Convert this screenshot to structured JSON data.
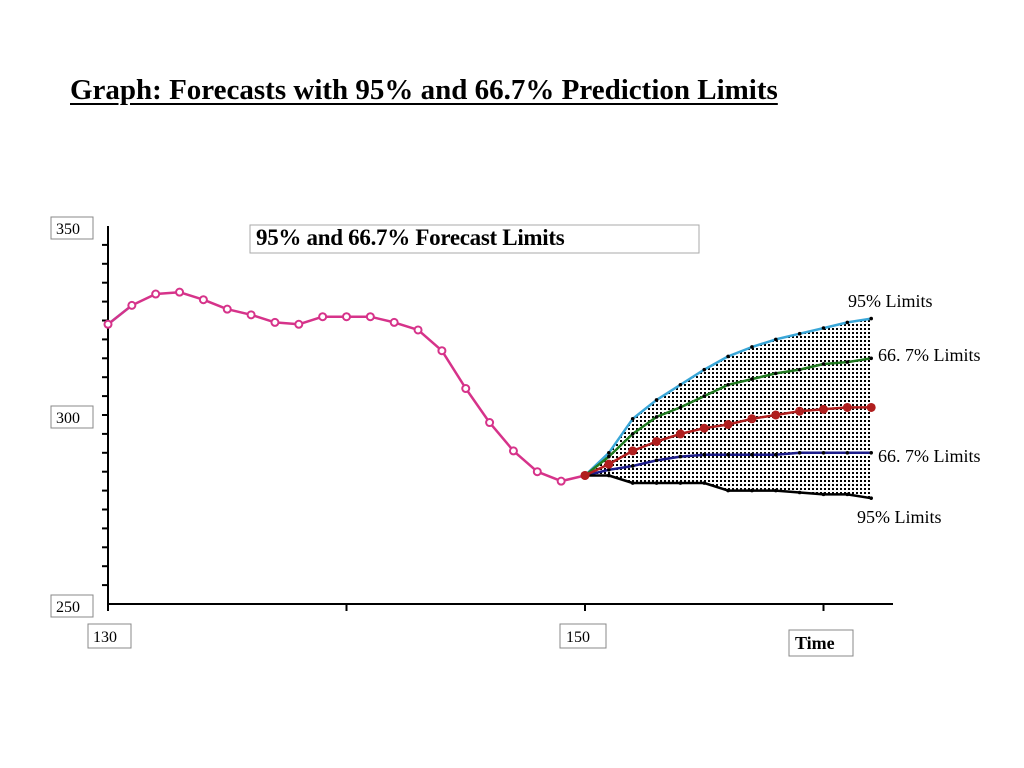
{
  "page": {
    "title": "Graph: Forecasts with 95% and 66.7% Prediction Limits"
  },
  "chart_data": {
    "type": "line",
    "title": "95% and 66.7% Forecast Limits",
    "xlabel": "Time",
    "ylabel": "",
    "xlim": [
      130,
      163
    ],
    "ylim": [
      250,
      350
    ],
    "x_ticks": [
      130,
      150
    ],
    "y_ticks": [
      250,
      300,
      350
    ],
    "grid": false,
    "series": [
      {
        "key": "observed",
        "color": "#d6338a",
        "marker": "open-circle",
        "x": [
          130,
          131,
          132,
          133,
          134,
          135,
          136,
          137,
          138,
          139,
          140,
          141,
          142,
          143,
          144,
          145,
          146,
          147,
          148,
          149,
          150
        ],
        "values": [
          324,
          329,
          332,
          332.5,
          330.5,
          328,
          326.5,
          324.5,
          324,
          326,
          326,
          326,
          324.5,
          322.5,
          317,
          307,
          298,
          290.5,
          285,
          282.5,
          284
        ]
      },
      {
        "key": "upper_95",
        "name": "95% Limits",
        "color": "#3aa7d8",
        "x": [
          150,
          151,
          152,
          153,
          154,
          155,
          156,
          157,
          158,
          159,
          160,
          161,
          162
        ],
        "values": [
          284,
          290,
          299,
          304,
          308,
          312,
          315.5,
          318,
          320,
          321.5,
          323,
          324.5,
          325.5
        ]
      },
      {
        "key": "upper_667",
        "name": "66. 7% Limits",
        "color": "#1f7a1f",
        "x": [
          150,
          151,
          152,
          153,
          154,
          155,
          156,
          157,
          158,
          159,
          160,
          161,
          162
        ],
        "values": [
          284,
          289,
          295,
          299.5,
          302,
          305,
          308,
          309.5,
          311,
          312,
          313.5,
          314,
          315
        ]
      },
      {
        "key": "forecast",
        "color": "#b01e1e",
        "marker": "filled-circle",
        "x": [
          150,
          151,
          152,
          153,
          154,
          155,
          156,
          157,
          158,
          159,
          160,
          161,
          162
        ],
        "values": [
          284,
          287,
          290.5,
          293,
          295,
          296.5,
          297.5,
          299,
          300,
          301,
          301.5,
          302,
          302
        ]
      },
      {
        "key": "lower_667",
        "name": "66. 7% Limits",
        "color": "#1c1c8c",
        "x": [
          150,
          151,
          152,
          153,
          154,
          155,
          156,
          157,
          158,
          159,
          160,
          161,
          162
        ],
        "values": [
          284,
          285.5,
          286.5,
          288,
          289,
          289.5,
          289.5,
          289.5,
          289.5,
          290,
          290,
          290,
          290
        ]
      },
      {
        "key": "lower_95",
        "name": "95% Limits",
        "color": "#000000",
        "x": [
          150,
          151,
          152,
          153,
          154,
          155,
          156,
          157,
          158,
          159,
          160,
          161,
          162
        ],
        "values": [
          284,
          284,
          282,
          282,
          282,
          282,
          280,
          280,
          280,
          279.5,
          279,
          279,
          278
        ]
      }
    ]
  }
}
